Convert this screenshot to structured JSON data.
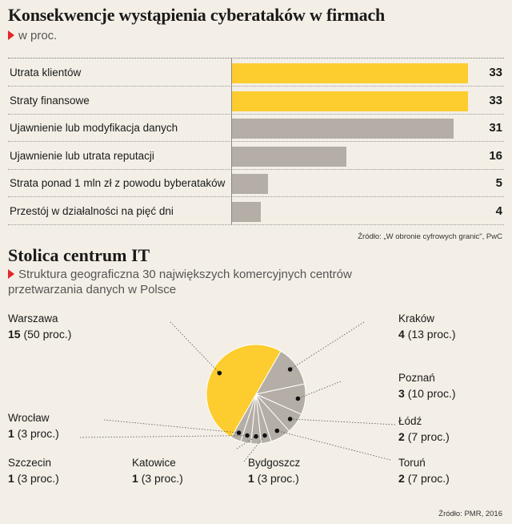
{
  "header": {
    "title": "Konsekwencje wystąpienia cyberataków w firmach",
    "subtitle": "w proc.",
    "source": "Źródło: „W obronie cyfrowych granic\", PwC"
  },
  "section2": {
    "title": "Stolica centrum IT",
    "subtitle": "Struktura geograficzna 30 największych komercyjnych centrów przetwarzania danych w Polsce",
    "source": "Źródło: PMR, 2016"
  },
  "colors": {
    "yellow": "#fdcc2f",
    "gray": "#b4aea6",
    "accent": "#e5262b"
  },
  "chart_data": [
    {
      "type": "bar",
      "orientation": "horizontal",
      "title": "Konsekwencje wystąpienia cyberataków w firmach",
      "subtitle": "w proc.",
      "categories": [
        "Utrata klientów",
        "Straty finansowe",
        "Ujawnienie lub modyfikacja danych",
        "Ujawnienie lub utrata reputacji",
        "Strata ponad 1 mln zł z powodu byberataków",
        "Przestój w działalności na pięć dni"
      ],
      "values": [
        33,
        33,
        31,
        16,
        5,
        4
      ],
      "bar_colors": [
        "#fdcc2f",
        "#fdcc2f",
        "#b4aea6",
        "#b4aea6",
        "#b4aea6",
        "#b4aea6"
      ],
      "xlim": [
        0,
        33
      ]
    },
    {
      "type": "pie",
      "title": "Stolica centrum IT",
      "labels": [
        "Warszawa",
        "Kraków",
        "Poznań",
        "Łódź",
        "Toruń",
        "Bydgoszcz",
        "Katowice",
        "Szczecin",
        "Wrocław"
      ],
      "values": [
        15,
        4,
        3,
        2,
        2,
        1,
        1,
        1,
        1
      ],
      "percent_labels": [
        "(50 proc.)",
        "(13 proc.)",
        "(10 proc.)",
        "(7 proc.)",
        "(7 proc.)",
        "(3 proc.)",
        "(3 proc.)",
        "(3 proc.)",
        "(3 proc.)"
      ],
      "colors": [
        "#fdcc2f",
        "#b4aea6",
        "#b4aea6",
        "#b4aea6",
        "#b4aea6",
        "#b4aea6",
        "#b4aea6",
        "#b4aea6",
        "#b4aea6"
      ]
    }
  ]
}
